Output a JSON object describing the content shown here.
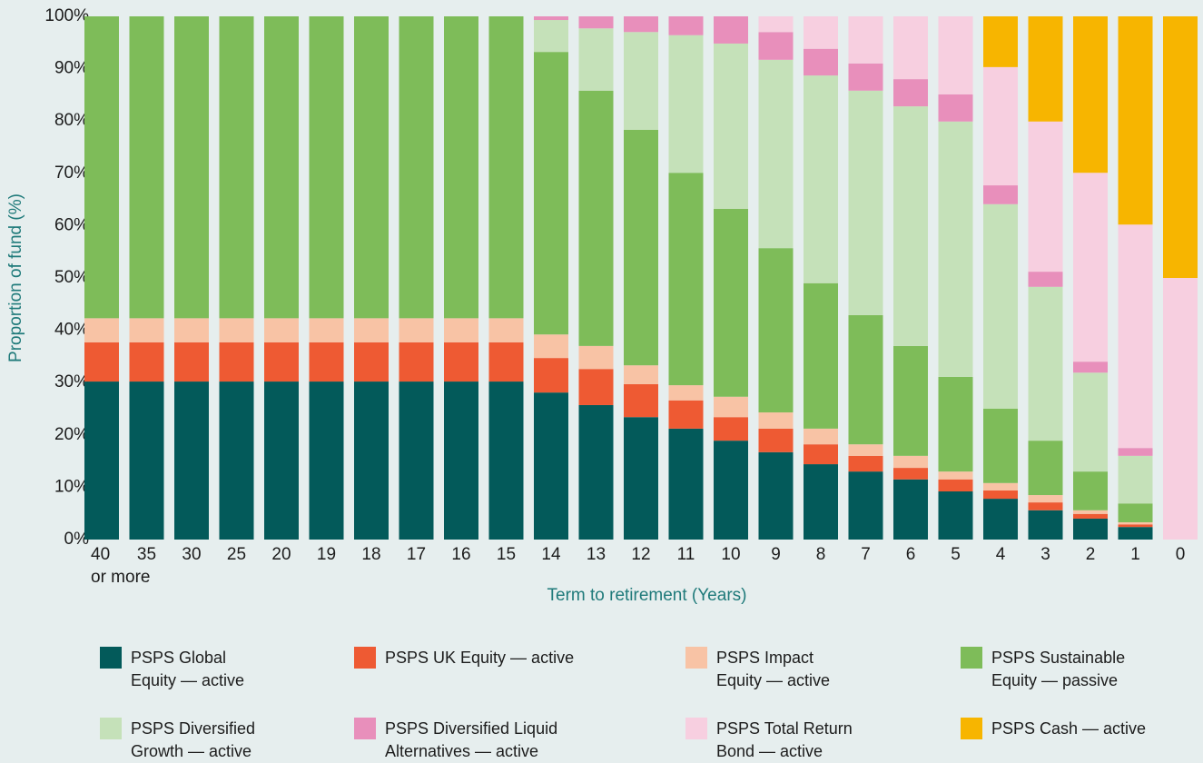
{
  "chart_data": {
    "type": "stacked_bar",
    "y_label": "Proportion of fund (%)",
    "x_label": "Term to retirement (Years)",
    "categories": [
      "40\nor more",
      "35",
      "30",
      "25",
      "20",
      "19",
      "18",
      "17",
      "16",
      "15",
      "14",
      "13",
      "12",
      "11",
      "10",
      "9",
      "8",
      "7",
      "6",
      "5",
      "4",
      "3",
      "2",
      "1",
      "0"
    ],
    "ylim": [
      0,
      100
    ],
    "yticks": [
      {
        "value": 0,
        "label": "0%"
      },
      {
        "value": 10,
        "label": "10%"
      },
      {
        "value": 20,
        "label": "20%"
      },
      {
        "value": 30,
        "label": "30%"
      },
      {
        "value": 40,
        "label": "40%"
      },
      {
        "value": 50,
        "label": "50%"
      },
      {
        "value": 60,
        "label": "60%"
      },
      {
        "value": 70,
        "label": "70%"
      },
      {
        "value": 80,
        "label": "80%"
      },
      {
        "value": 90,
        "label": "90%"
      },
      {
        "value": 100,
        "label": "100%"
      }
    ],
    "series": [
      {
        "name": "PSPS Global\nEquity — active",
        "color": "#035a5a",
        "values": [
          30.2,
          30.2,
          30.2,
          30.2,
          30.2,
          30.2,
          30.2,
          30.2,
          30.2,
          30.2,
          28.1,
          25.7,
          23.4,
          21.2,
          18.9,
          16.7,
          14.4,
          13,
          11.5,
          9.2,
          7.8,
          5.6,
          4,
          2.4,
          0
        ]
      },
      {
        "name": "PSPS UK Equity — active",
        "color": "#ee5a33",
        "values": [
          7.5,
          7.5,
          7.5,
          7.5,
          7.5,
          7.5,
          7.5,
          7.5,
          7.5,
          7.5,
          6.6,
          6.9,
          6.3,
          5.4,
          4.5,
          4.5,
          3.8,
          3,
          2.2,
          2.3,
          1.6,
          1.5,
          0.9,
          0.5,
          0
        ]
      },
      {
        "name": "PSPS Impact\nEquity — active",
        "color": "#f8c3a5",
        "values": [
          4.6,
          4.6,
          4.6,
          4.6,
          4.6,
          4.6,
          4.6,
          4.6,
          4.6,
          4.6,
          4.5,
          4.4,
          3.6,
          2.9,
          3.9,
          3.1,
          3,
          2.2,
          2.3,
          1.5,
          1.4,
          1.4,
          0.7,
          0.4,
          0
        ]
      },
      {
        "name": "PSPS Sustainable\nEquity — passive",
        "color": "#7ebc59",
        "values": [
          57.7,
          57.7,
          57.7,
          57.7,
          57.7,
          57.7,
          57.7,
          57.7,
          57.7,
          57.7,
          54,
          48.8,
          45,
          40.6,
          35.9,
          31.4,
          27.8,
          24.7,
          21,
          18.1,
          14.2,
          10.4,
          7.4,
          3.6,
          0
        ]
      },
      {
        "name": "PSPS Diversified\nGrowth — active",
        "color": "#c5e1b9",
        "values": [
          0,
          0,
          0,
          0,
          0,
          0,
          0,
          0,
          0,
          0,
          6.1,
          11.9,
          18.7,
          26.3,
          31.6,
          36,
          39.7,
          42.9,
          45.8,
          48.8,
          39.1,
          29.4,
          18.9,
          9.1,
          0
        ]
      },
      {
        "name": "PSPS Diversified Liquid\nAlternatives — active",
        "color": "#e88fbb",
        "values": [
          0,
          0,
          0,
          0,
          0,
          0,
          0,
          0,
          0,
          0,
          0.7,
          2.3,
          3,
          3.6,
          5.2,
          5.3,
          5.1,
          5.2,
          5.2,
          5.2,
          3.6,
          2.9,
          2.1,
          1.5,
          0
        ]
      },
      {
        "name": "PSPS Total Return\nBond — active",
        "color": "#f7cfe0",
        "values": [
          0,
          0,
          0,
          0,
          0,
          0,
          0,
          0,
          0,
          0,
          0,
          0,
          0,
          0,
          0,
          3,
          6.2,
          9,
          12,
          14.9,
          22.6,
          28.7,
          36.1,
          42.7,
          50
        ]
      },
      {
        "name": "PSPS Cash — active",
        "color": "#f7b500",
        "values": [
          0,
          0,
          0,
          0,
          0,
          0,
          0,
          0,
          0,
          0,
          0,
          0,
          0,
          0,
          0,
          0,
          0,
          0,
          0,
          0,
          9.7,
          20.1,
          29.9,
          39.8,
          50
        ]
      }
    ]
  }
}
